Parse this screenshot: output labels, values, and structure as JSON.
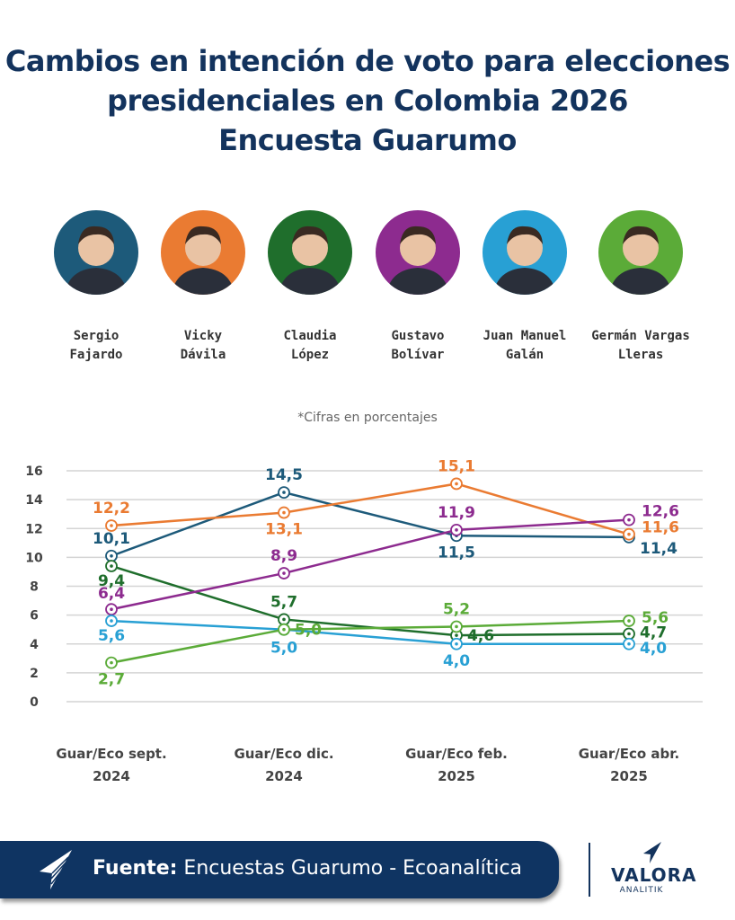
{
  "header": {
    "title_lines": [
      "Cambios en intención de voto para elecciones",
      "presidenciales en Colombia 2026",
      "Encuesta Guarumo"
    ]
  },
  "candidates": [
    {
      "name_lines": [
        "Sergio",
        "Fajardo"
      ],
      "color": "#1d5a7a"
    },
    {
      "name_lines": [
        "Vicky",
        "Dávila"
      ],
      "color": "#ea7b32"
    },
    {
      "name_lines": [
        "Claudia",
        "López"
      ],
      "color": "#1f6e2c"
    },
    {
      "name_lines": [
        "Gustavo",
        "Bolívar"
      ],
      "color": "#8d2b8f"
    },
    {
      "name_lines": [
        "Juan Manuel",
        "Galán"
      ],
      "color": "#28a0d4"
    },
    {
      "name_lines": [
        "Germán Vargas",
        "Lleras"
      ],
      "color": "#5bab38"
    }
  ],
  "note": "*Cifras en porcentajes",
  "chart_data": {
    "type": "line",
    "title": "Cambios en intención de voto para elecciones presidenciales en Colombia 2026 - Encuesta Guarumo",
    "categories": [
      [
        "Guar/Eco sept.",
        "2024"
      ],
      [
        "Guar/Eco dic.",
        "2024"
      ],
      [
        "Guar/Eco feb.",
        "2025"
      ],
      [
        "Guar/Eco abr.",
        "2025"
      ]
    ],
    "ylim": [
      0,
      16
    ],
    "yticks": [
      0,
      2,
      4,
      6,
      8,
      10,
      12,
      14,
      16
    ],
    "grid": true,
    "legend": "top (candidate photos)",
    "series": [
      {
        "name": "Sergio Fajardo",
        "color": "#1d5a7a",
        "values": [
          10.1,
          14.5,
          11.5,
          11.4
        ],
        "labels": [
          "10,1",
          "14,5",
          "11,5",
          "11,4"
        ]
      },
      {
        "name": "Vicky Dávila",
        "color": "#ea7b32",
        "values": [
          12.2,
          13.1,
          15.1,
          11.6
        ],
        "labels": [
          "12,2",
          "13,1",
          "15,1",
          "11,6"
        ]
      },
      {
        "name": "Claudia López",
        "color": "#1f6e2c",
        "values": [
          9.4,
          5.7,
          4.6,
          4.7
        ],
        "labels": [
          "9,4",
          "5,7",
          "4,6",
          "4,7"
        ]
      },
      {
        "name": "Gustavo Bolívar",
        "color": "#8d2b8f",
        "values": [
          6.4,
          8.9,
          11.9,
          12.6
        ],
        "labels": [
          "6,4",
          "8,9",
          "11,9",
          "12,6"
        ]
      },
      {
        "name": "Juan Manuel Galán",
        "color": "#28a0d4",
        "values": [
          5.6,
          5.0,
          4.0,
          4.0
        ],
        "labels": [
          "5,6",
          "5,0",
          "4,0",
          "4,0"
        ]
      },
      {
        "name": "Germán Vargas Lleras",
        "color": "#5bab38",
        "values": [
          2.7,
          5.0,
          5.2,
          5.6
        ],
        "labels": [
          "2,7",
          "5,0",
          "5,2",
          "5,6"
        ]
      }
    ]
  },
  "footer": {
    "source_label": "Fuente:",
    "source_text": " Encuestas Guarumo - Ecoanalítica",
    "logo_name": "VALORA",
    "logo_sub": "ANALITIK",
    "logo_icon": "paper-plane-icon"
  }
}
